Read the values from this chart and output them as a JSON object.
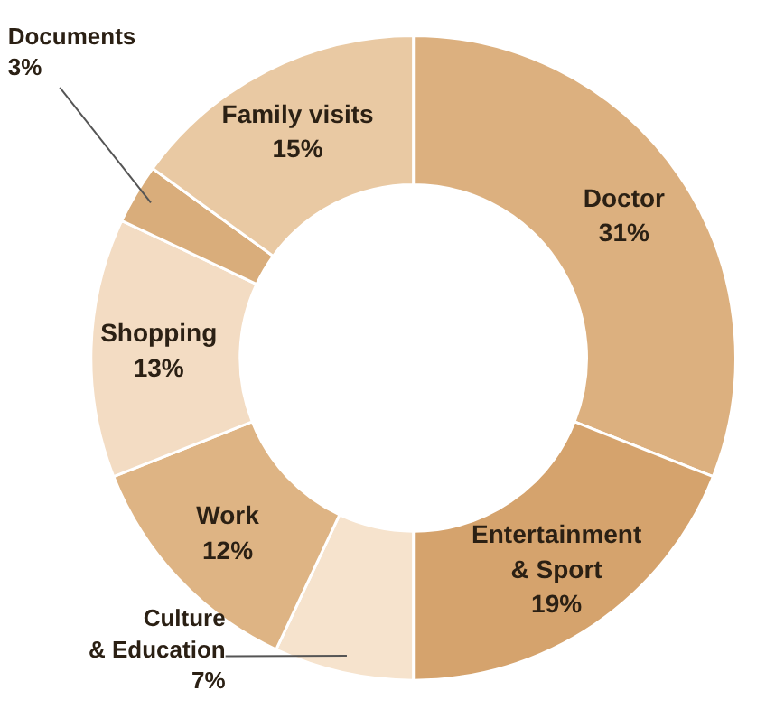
{
  "chart_data": {
    "type": "donut",
    "categories": [
      "Doctor",
      "Entertainment & Sport",
      "Culture & Education",
      "Work",
      "Shopping",
      "Documents",
      "Family visits"
    ],
    "values": [
      31,
      19,
      7,
      12,
      13,
      3,
      15
    ],
    "value_labels": [
      "31%",
      "19%",
      "7%",
      "12%",
      "13%",
      "3%",
      "15%"
    ],
    "colors": [
      "#dcb07f",
      "#d5a36d",
      "#f6e3cd",
      "#deb484",
      "#f3dcc3",
      "#d9ad7b",
      "#e9c9a3"
    ]
  }
}
